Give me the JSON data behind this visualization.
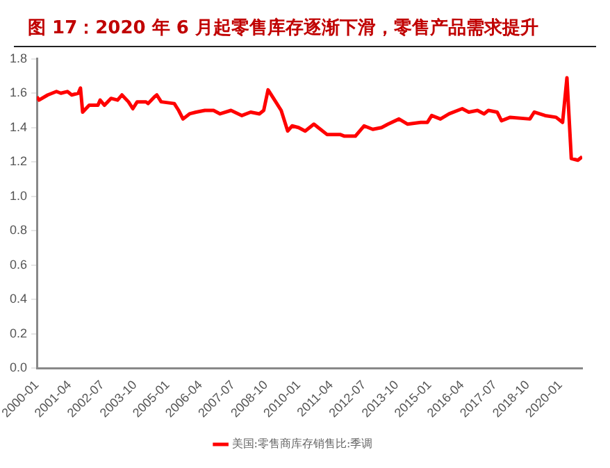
{
  "chart_data": {
    "type": "line",
    "title": "图  17：2020 年 6 月起零售库存逐渐下滑，零售产品需求提升",
    "x": [
      "2000-01",
      "2000-02",
      "2000-06",
      "2000-10",
      "2000-12",
      "2001-03",
      "2001-05",
      "2001-08",
      "2001-09",
      "2001-10",
      "2002-01",
      "2002-05",
      "2002-06",
      "2002-08",
      "2002-11",
      "2003-02",
      "2003-04",
      "2003-07",
      "2003-09",
      "2003-11",
      "2004-03",
      "2004-04",
      "2004-07",
      "2004-08",
      "2004-10",
      "2005-04",
      "2005-06",
      "2005-08",
      "2005-11",
      "2006-02",
      "2006-06",
      "2006-10",
      "2007-01",
      "2007-06",
      "2007-11",
      "2008-03",
      "2008-07",
      "2008-09",
      "2008-11",
      "2009-02",
      "2009-05",
      "2009-08",
      "2009-10",
      "2010-01",
      "2010-04",
      "2010-08",
      "2010-10",
      "2011-02",
      "2011-08",
      "2011-10",
      "2012-03",
      "2012-07",
      "2012-11",
      "2013-03",
      "2013-06",
      "2013-11",
      "2014-03",
      "2014-09",
      "2014-12",
      "2015-02",
      "2015-06",
      "2015-10",
      "2016-04",
      "2016-07",
      "2016-11",
      "2017-02",
      "2017-04",
      "2017-08",
      "2017-10",
      "2018-02",
      "2018-11",
      "2019-01",
      "2019-06",
      "2019-11",
      "2020-02",
      "2020-04",
      "2020-06",
      "2020-09",
      "2020-11"
    ],
    "series": [
      {
        "name": "美国:零售商库存销售比:季调",
        "color": "#ff0000",
        "values": [
          1.58,
          1.56,
          1.59,
          1.61,
          1.6,
          1.61,
          1.59,
          1.6,
          1.63,
          1.49,
          1.53,
          1.53,
          1.56,
          1.53,
          1.57,
          1.56,
          1.59,
          1.55,
          1.51,
          1.55,
          1.55,
          1.54,
          1.58,
          1.59,
          1.55,
          1.54,
          1.5,
          1.45,
          1.48,
          1.49,
          1.5,
          1.5,
          1.48,
          1.5,
          1.47,
          1.49,
          1.48,
          1.5,
          1.62,
          1.56,
          1.5,
          1.38,
          1.41,
          1.4,
          1.38,
          1.42,
          1.4,
          1.36,
          1.36,
          1.35,
          1.35,
          1.41,
          1.39,
          1.4,
          1.42,
          1.45,
          1.42,
          1.43,
          1.43,
          1.47,
          1.45,
          1.48,
          1.51,
          1.49,
          1.5,
          1.48,
          1.5,
          1.49,
          1.44,
          1.46,
          1.45,
          1.49,
          1.47,
          1.46,
          1.43,
          1.69,
          1.22,
          1.21,
          1.23
        ]
      }
    ],
    "xlim": [
      "2000-01",
      "2020-11"
    ],
    "xticks": [
      "2000-01",
      "2001-04",
      "2002-07",
      "2003-10",
      "2005-01",
      "2006-04",
      "2007-07",
      "2008-10",
      "2010-01",
      "2011-04",
      "2012-07",
      "2013-10",
      "2015-01",
      "2016-04",
      "2017-07",
      "2018-10",
      "2020-01"
    ],
    "ylim": [
      0,
      1.8
    ],
    "yticks": [
      {
        "value": 0,
        "label": "0.0"
      },
      0.2,
      0.4,
      0.6,
      0.8,
      {
        "value": 1,
        "label": "1.0"
      },
      1.2,
      1.4,
      1.6,
      1.8
    ],
    "legend": "bottom",
    "grid": false,
    "marker": "none",
    "line_style": "solid"
  }
}
